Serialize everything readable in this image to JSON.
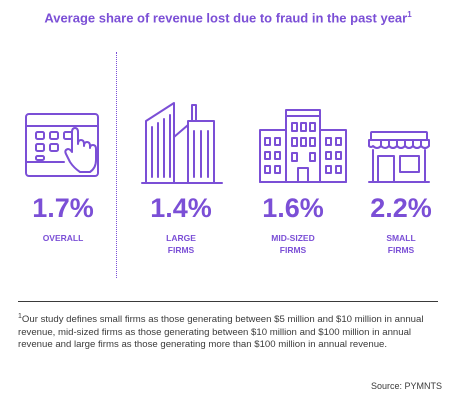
{
  "title": "Average share of revenue lost due to fraud in the past year",
  "title_footnote_marker": "1",
  "chart_data": {
    "type": "infographic",
    "categories": [
      "OVERALL",
      "LARGE FIRMS",
      "MID-SIZED FIRMS",
      "SMALL FIRMS"
    ],
    "values": [
      1.7,
      1.4,
      1.6,
      2.2
    ],
    "unit": "%",
    "items": [
      {
        "value_label": "1.7%",
        "label": "OVERALL",
        "icon": "tablet-touch-icon"
      },
      {
        "value_label": "1.4%",
        "label": "LARGE\nFIRMS",
        "icon": "skyscrapers-icon"
      },
      {
        "value_label": "1.6%",
        "label": "MID-SIZED\nFIRMS",
        "icon": "office-buildings-icon"
      },
      {
        "value_label": "2.2%",
        "label": "SMALL\nFIRMS",
        "icon": "storefront-icon"
      }
    ]
  },
  "footnote_marker": "1",
  "footnote": "Our study defines small firms as those generating between $5 million and $10 million in annual revenue, mid-sized firms as those generating between $10 million and $100 million in annual revenue and large firms as those generating more than $100 million in annual revenue.",
  "source": "Source: PYMNTS",
  "colors": {
    "accent": "#7b4fd6",
    "text": "#3a3a3a"
  }
}
